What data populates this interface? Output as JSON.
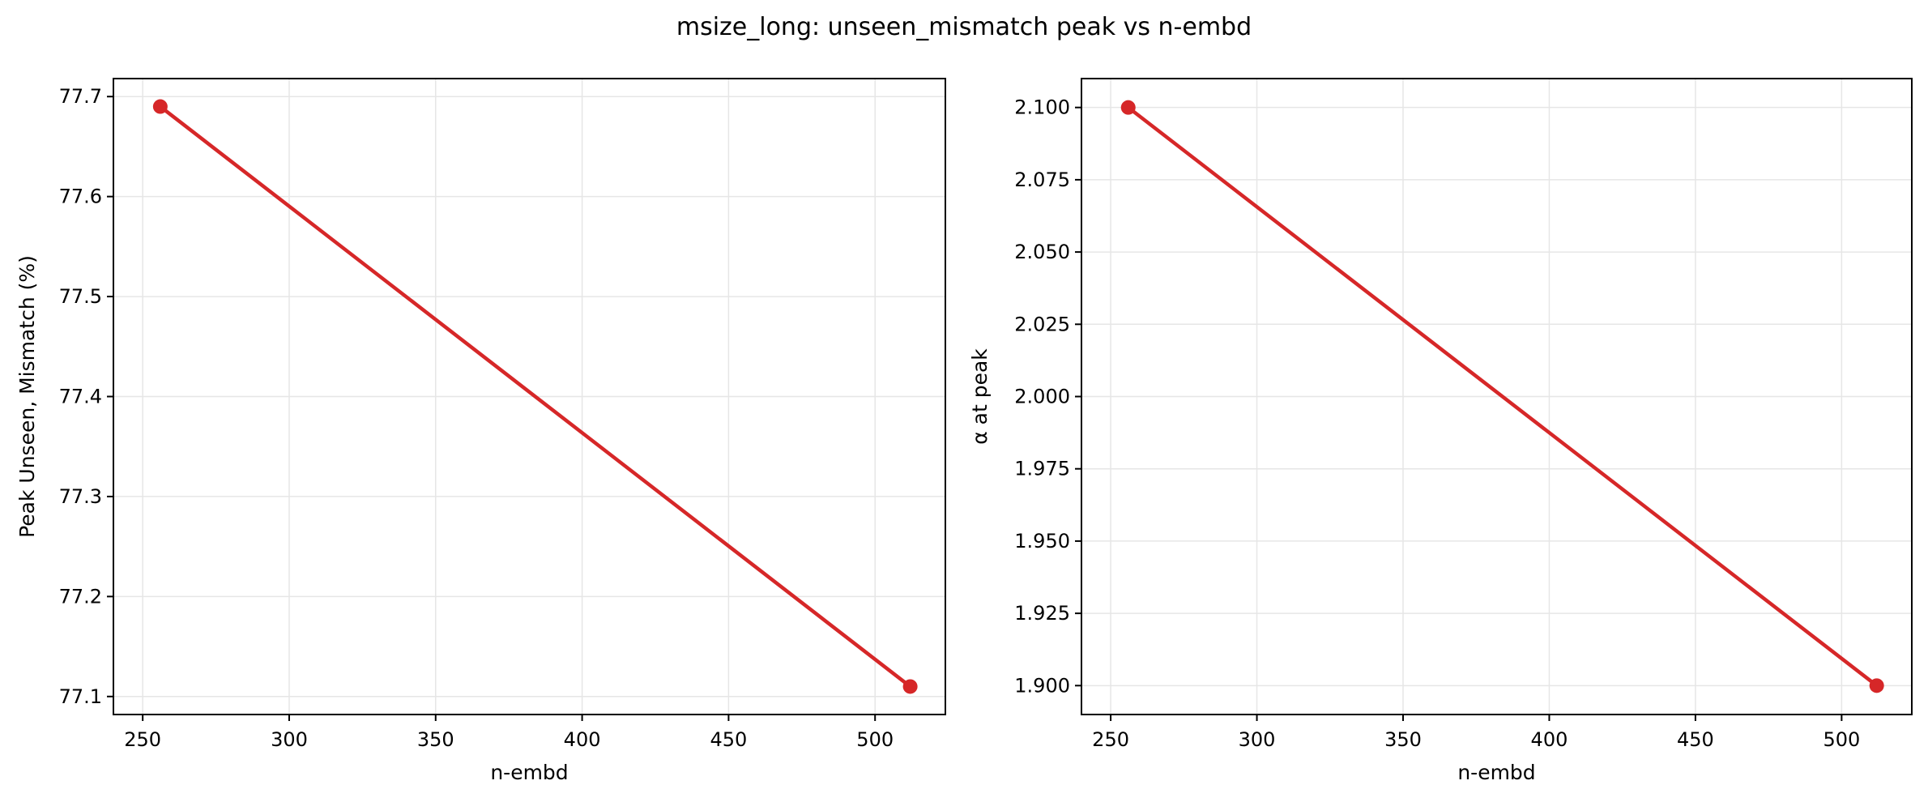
{
  "figure": {
    "suptitle": "msize_long: unseen_mismatch peak vs n-embd"
  },
  "colors": {
    "series": "#d62728",
    "grid": "#e6e6e6",
    "axes": "#000000",
    "background": "#ffffff"
  },
  "chart_data": [
    {
      "type": "line",
      "title": "",
      "xlabel": "n-embd",
      "ylabel": "Peak Unseen, Mismatch (%)",
      "xlim": [
        240,
        524
      ],
      "ylim": [
        77.082,
        77.718
      ],
      "xticks": [
        250,
        300,
        350,
        400,
        450,
        500
      ],
      "yticks": [
        77.1,
        77.2,
        77.3,
        77.4,
        77.5,
        77.6,
        77.7
      ],
      "ytick_labels": [
        "77.1",
        "77.2",
        "77.3",
        "77.4",
        "77.5",
        "77.6",
        "77.7"
      ],
      "grid": true,
      "legend": "none",
      "series": [
        {
          "x": [
            256,
            512
          ],
          "y": [
            77.69,
            77.11
          ],
          "marker": "circle"
        }
      ]
    },
    {
      "type": "line",
      "title": "",
      "xlabel": "n-embd",
      "ylabel": "α at peak",
      "xlim": [
        240,
        524
      ],
      "ylim": [
        1.89,
        2.11
      ],
      "xticks": [
        250,
        300,
        350,
        400,
        450,
        500
      ],
      "yticks": [
        1.9,
        1.925,
        1.95,
        1.975,
        2.0,
        2.025,
        2.05,
        2.075,
        2.1
      ],
      "ytick_labels": [
        "1.900",
        "1.925",
        "1.950",
        "1.975",
        "2.000",
        "2.025",
        "2.050",
        "2.075",
        "2.100"
      ],
      "grid": true,
      "legend": "none",
      "series": [
        {
          "x": [
            256,
            512
          ],
          "y": [
            2.1,
            1.9
          ],
          "marker": "circle"
        }
      ]
    }
  ]
}
